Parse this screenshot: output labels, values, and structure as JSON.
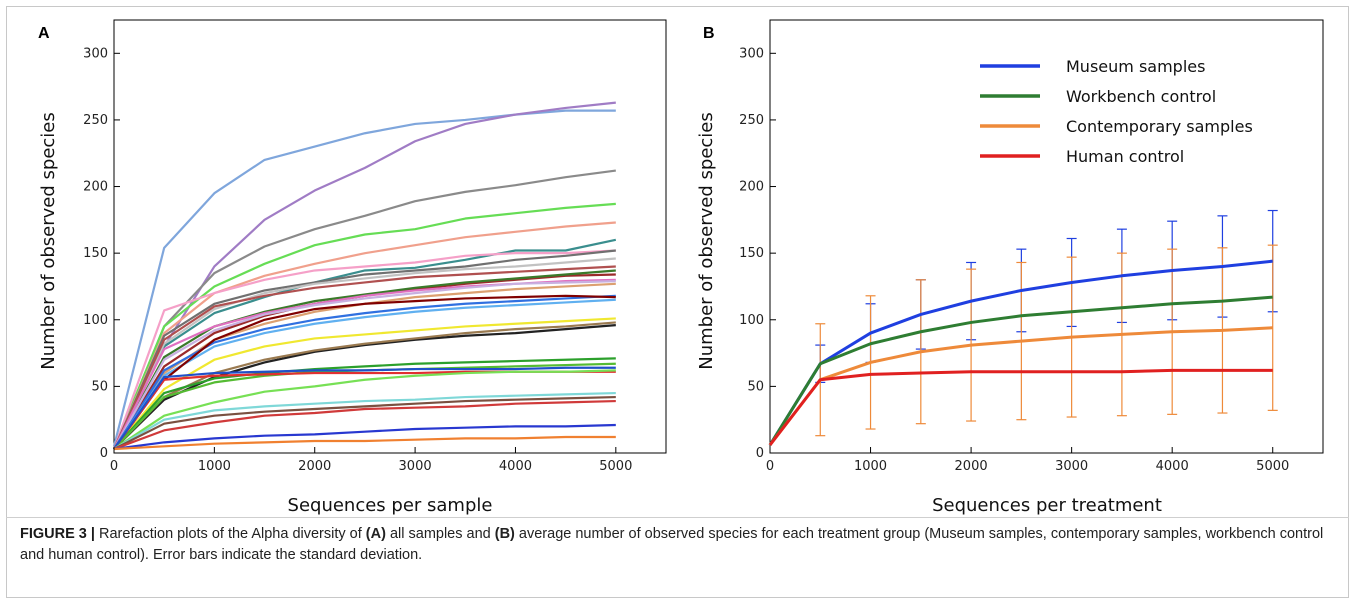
{
  "caption": {
    "figure_label": "FIGURE 3 |",
    "text_1": " Rarefaction plots of the Alpha diversity of ",
    "bold_a": "(A)",
    "text_2": " all samples and ",
    "bold_b": "(B)",
    "text_3": " average number of observed species for each treatment group (Museum samples, contemporary samples, workbench control and human control). Error bars indicate the standard deviation."
  },
  "chart_data": [
    {
      "panel": "A",
      "type": "line",
      "xlabel": "Sequences per sample",
      "ylabel": "Number of observed species",
      "xlim": [
        0,
        5500
      ],
      "ylim": [
        0,
        325
      ],
      "xticks": [
        0,
        1000,
        2000,
        3000,
        4000,
        5000
      ],
      "yticks": [
        0,
        50,
        100,
        150,
        200,
        250,
        300
      ],
      "grid": false,
      "x": [
        0,
        500,
        1000,
        1500,
        2000,
        2500,
        3000,
        3500,
        4000,
        4500,
        5000
      ],
      "series": [
        {
          "color": "#7fa6dc",
          "values": [
            5,
            154,
            195,
            220,
            230,
            240,
            247,
            250,
            254,
            257,
            257
          ]
        },
        {
          "color": "#a07cc5",
          "values": [
            3,
            80,
            140,
            175,
            197,
            214,
            234,
            247,
            254,
            259,
            263
          ]
        },
        {
          "color": "#8a8a8a",
          "values": [
            3,
            95,
            135,
            155,
            168,
            178,
            189,
            196,
            201,
            207,
            212
          ]
        },
        {
          "color": "#66dd55",
          "values": [
            3,
            95,
            125,
            142,
            156,
            164,
            168,
            176,
            180,
            184,
            187
          ]
        },
        {
          "color": "#f0a08c",
          "values": [
            3,
            90,
            120,
            133,
            142,
            150,
            156,
            162,
            166,
            170,
            173
          ]
        },
        {
          "color": "#3a8e8e",
          "values": [
            3,
            80,
            105,
            117,
            128,
            137,
            139,
            145,
            152,
            152,
            160
          ]
        },
        {
          "color": "#f5a0c8",
          "values": [
            3,
            107,
            120,
            130,
            137,
            140,
            143,
            148,
            150,
            150,
            152
          ]
        },
        {
          "color": "#707070",
          "values": [
            3,
            88,
            112,
            122,
            128,
            134,
            137,
            140,
            145,
            148,
            152
          ]
        },
        {
          "color": "#c2c2c2",
          "values": [
            3,
            82,
            108,
            120,
            127,
            131,
            135,
            138,
            140,
            143,
            146
          ]
        },
        {
          "color": "#b05050",
          "values": [
            3,
            85,
            110,
            118,
            124,
            128,
            132,
            134,
            136,
            138,
            140
          ]
        },
        {
          "color": "#9a2a2a",
          "values": [
            3,
            65,
            90,
            103,
            112,
            118,
            123,
            127,
            130,
            133,
            134
          ]
        },
        {
          "color": "#3a7a2a",
          "values": [
            3,
            72,
            95,
            106,
            114,
            119,
            124,
            128,
            131,
            134,
            137
          ]
        },
        {
          "color": "#e070c0",
          "values": [
            3,
            78,
            95,
            105,
            112,
            118,
            122,
            125,
            127,
            129,
            130
          ]
        },
        {
          "color": "#c8b0e0",
          "values": [
            3,
            70,
            92,
            104,
            111,
            116,
            120,
            124,
            127,
            128,
            129
          ]
        },
        {
          "color": "#dca070",
          "values": [
            3,
            60,
            85,
            97,
            106,
            112,
            117,
            120,
            123,
            125,
            127
          ]
        },
        {
          "color": "#3070e0",
          "values": [
            3,
            62,
            83,
            93,
            100,
            105,
            109,
            112,
            114,
            116,
            118
          ]
        },
        {
          "color": "#60b0f0",
          "values": [
            3,
            58,
            80,
            90,
            97,
            102,
            106,
            109,
            111,
            113,
            115
          ]
        },
        {
          "color": "#800000",
          "values": [
            3,
            55,
            85,
            100,
            108,
            112,
            114,
            116,
            117,
            118,
            117
          ]
        },
        {
          "color": "#f0e830",
          "values": [
            3,
            48,
            70,
            80,
            86,
            89,
            92,
            95,
            97,
            99,
            101
          ]
        },
        {
          "color": "#222222",
          "values": [
            3,
            40,
            57,
            68,
            76,
            81,
            85,
            88,
            90,
            93,
            96
          ]
        },
        {
          "color": "#9a7a50",
          "values": [
            3,
            42,
            60,
            70,
            77,
            82,
            86,
            90,
            93,
            95,
            98
          ]
        },
        {
          "color": "#2ca02c",
          "values": [
            3,
            45,
            56,
            60,
            63,
            65,
            67,
            68,
            69,
            70,
            71
          ]
        },
        {
          "color": "#55bb33",
          "values": [
            3,
            42,
            53,
            58,
            61,
            62,
            63,
            64,
            65,
            66,
            67
          ]
        },
        {
          "color": "#e03030",
          "values": [
            3,
            55,
            58,
            59,
            60,
            60,
            60,
            61,
            61,
            61,
            61
          ]
        },
        {
          "color": "#2050c8",
          "values": [
            3,
            57,
            60,
            61,
            62,
            62,
            63,
            63,
            63,
            64,
            64
          ]
        },
        {
          "color": "#77e055",
          "values": [
            3,
            28,
            38,
            46,
            50,
            55,
            58,
            60,
            61,
            61,
            62
          ]
        },
        {
          "color": "#7fd8d8",
          "values": [
            3,
            25,
            32,
            35,
            37,
            39,
            40,
            42,
            43,
            44,
            45
          ]
        },
        {
          "color": "#7a5040",
          "values": [
            3,
            22,
            28,
            31,
            33,
            35,
            37,
            39,
            40,
            41,
            42
          ]
        },
        {
          "color": "#d03a3a",
          "values": [
            3,
            17,
            23,
            28,
            30,
            33,
            34,
            35,
            37,
            38,
            39
          ]
        },
        {
          "color": "#2838d0",
          "values": [
            3,
            8,
            11,
            13,
            14,
            16,
            18,
            19,
            20,
            20,
            21
          ]
        },
        {
          "color": "#f08030",
          "values": [
            3,
            5,
            7,
            8,
            9,
            9,
            10,
            11,
            11,
            12,
            12
          ]
        }
      ]
    },
    {
      "panel": "B",
      "type": "line",
      "xlabel": "Sequences per treatment",
      "ylabel": "Number of observed species",
      "xlim": [
        0,
        5500
      ],
      "ylim": [
        0,
        325
      ],
      "xticks": [
        0,
        1000,
        2000,
        3000,
        4000,
        5000
      ],
      "yticks": [
        0,
        50,
        100,
        150,
        200,
        250,
        300
      ],
      "grid": false,
      "legend_position": "top-right",
      "x": [
        0,
        500,
        1000,
        1500,
        2000,
        2500,
        3000,
        3500,
        4000,
        4500,
        5000
      ],
      "series": [
        {
          "name": "Museum samples",
          "color": "#1f3fe0",
          "values": [
            6,
            67,
            90,
            104,
            114,
            122,
            128,
            133,
            137,
            140,
            144
          ],
          "error": [
            0,
            14,
            22,
            26,
            29,
            31,
            33,
            35,
            37,
            38,
            38
          ]
        },
        {
          "name": "Workbench control",
          "color": "#2e7d32",
          "values": [
            6,
            67,
            82,
            91,
            98,
            103,
            106,
            109,
            112,
            114,
            117
          ],
          "error": [
            0,
            0,
            0,
            0,
            0,
            0,
            0,
            0,
            0,
            0,
            0
          ]
        },
        {
          "name": "Contemporary samples",
          "color": "#ee8a3a",
          "values": [
            6,
            55,
            68,
            76,
            81,
            84,
            87,
            89,
            91,
            92,
            94
          ],
          "error": [
            0,
            42,
            50,
            54,
            57,
            59,
            60,
            61,
            62,
            62,
            62
          ]
        },
        {
          "name": "Human control",
          "color": "#e02020",
          "values": [
            6,
            55,
            59,
            60,
            61,
            61,
            61,
            61,
            62,
            62,
            62
          ],
          "error": [
            0,
            0,
            0,
            0,
            0,
            0,
            0,
            0,
            0,
            0,
            0
          ]
        }
      ]
    }
  ]
}
